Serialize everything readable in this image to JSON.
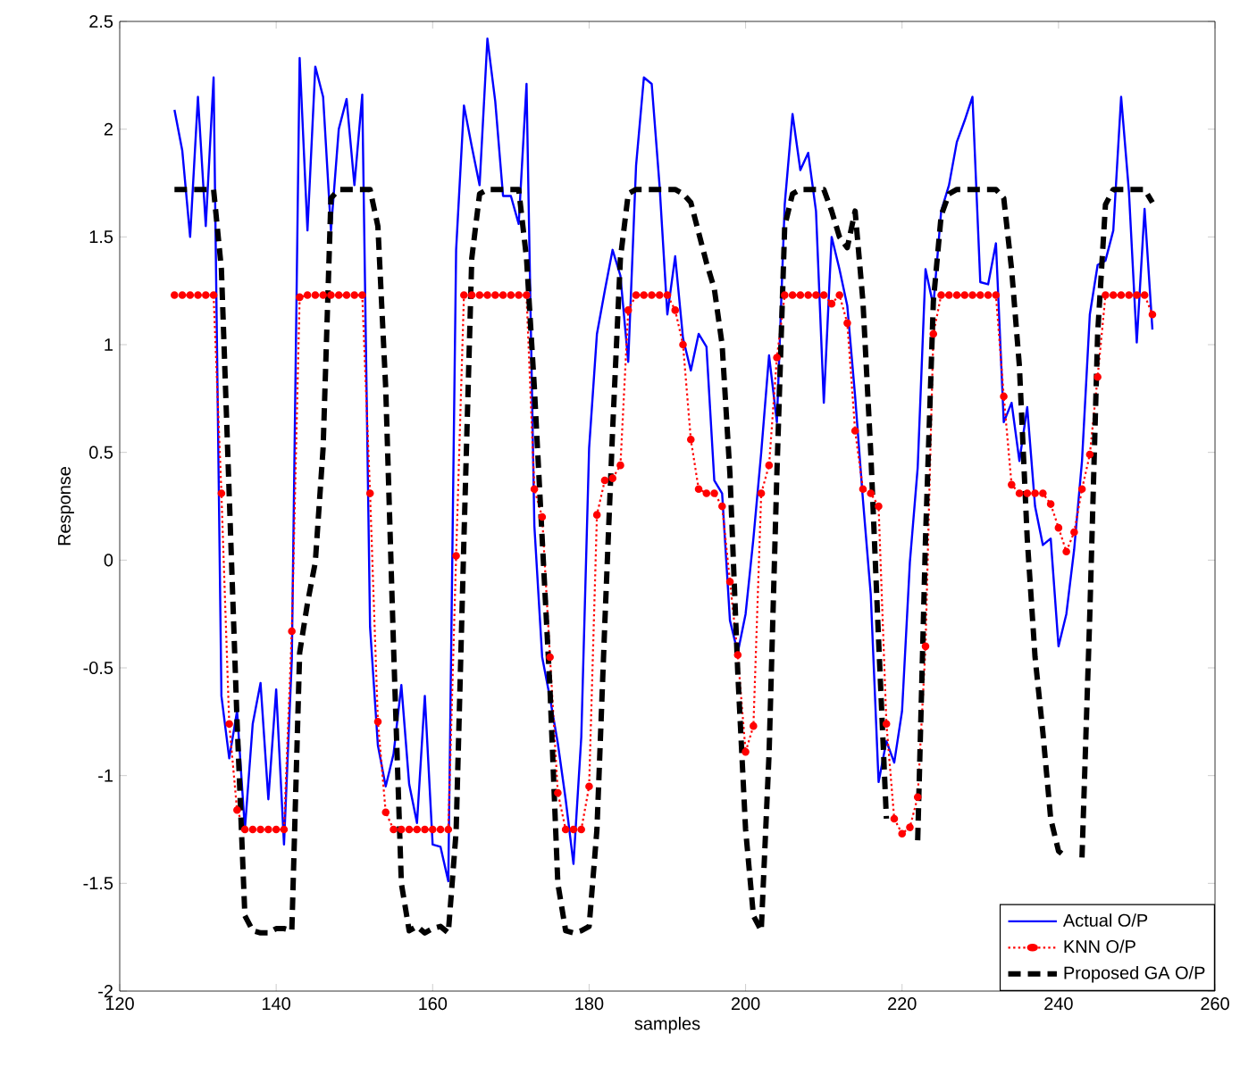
{
  "chart_data": {
    "type": "line",
    "xlabel": "samples",
    "ylabel": "Response",
    "xlim": [
      120,
      260
    ],
    "xticks": [
      120,
      140,
      160,
      180,
      200,
      220,
      240,
      260
    ],
    "ylim": [
      -2,
      2.5
    ],
    "yticks": [
      -2,
      -1.5,
      -1,
      -0.5,
      0,
      0.5,
      1,
      1.5,
      2,
      2.5
    ],
    "grid": false,
    "legend": "bottom right",
    "series": [
      {
        "name": "Actual O/P",
        "color": "#0000ff",
        "line_style": "solid",
        "marker": "none",
        "x": [
          127,
          128,
          129,
          130,
          131,
          132,
          133,
          134,
          135,
          136,
          137,
          138,
          139,
          140,
          141,
          142,
          143,
          144,
          145,
          146,
          147,
          148,
          149,
          150,
          151,
          152,
          153,
          154,
          155,
          156,
          157,
          158,
          159,
          160,
          161,
          162,
          163,
          164,
          165,
          166,
          167,
          168,
          169,
          170,
          171,
          172,
          173,
          174,
          175,
          176,
          177,
          178,
          179,
          180,
          181,
          182,
          183,
          184,
          185,
          186,
          187,
          188,
          189,
          190,
          191,
          192,
          193,
          194,
          195,
          196,
          197,
          198,
          199,
          200,
          201,
          202,
          203,
          204,
          205,
          206,
          207,
          208,
          209,
          210,
          211,
          212,
          213,
          214,
          215,
          216,
          217,
          218,
          219,
          220,
          221,
          222,
          223,
          224,
          225,
          226,
          227,
          228,
          229,
          230,
          231,
          232,
          233,
          234,
          235,
          236,
          237,
          238,
          239,
          240,
          241,
          242,
          243,
          244,
          245,
          246,
          247,
          248,
          249,
          250,
          251,
          252
        ],
        "values": [
          2.09,
          1.9,
          1.5,
          2.15,
          1.55,
          2.24,
          -0.63,
          -0.92,
          -0.7,
          -1.25,
          -0.76,
          -0.57,
          -1.11,
          -0.6,
          -1.32,
          -0.46,
          2.33,
          1.53,
          2.29,
          2.15,
          1.53,
          2.0,
          2.14,
          1.74,
          2.16,
          -0.31,
          -0.86,
          -1.05,
          -0.9,
          -0.58,
          -1.04,
          -1.22,
          -0.63,
          -1.32,
          -1.33,
          -1.49,
          1.44,
          2.11,
          1.92,
          1.74,
          2.42,
          2.13,
          1.69,
          1.69,
          1.56,
          2.21,
          0.16,
          -0.45,
          -0.64,
          -0.85,
          -1.11,
          -1.41,
          -0.82,
          0.52,
          1.05,
          1.25,
          1.44,
          1.32,
          0.92,
          1.83,
          2.24,
          2.21,
          1.74,
          1.14,
          1.41,
          1.03,
          0.88,
          1.05,
          0.99,
          0.37,
          0.31,
          -0.28,
          -0.43,
          -0.25,
          0.1,
          0.5,
          0.95,
          0.64,
          1.65,
          2.07,
          1.81,
          1.89,
          1.62,
          0.73,
          1.5,
          1.35,
          1.18,
          0.76,
          0.28,
          -0.16,
          -1.03,
          -0.84,
          -0.94,
          -0.7,
          -0.01,
          0.43,
          1.35,
          1.18,
          1.62,
          1.74,
          1.94,
          2.04,
          2.15,
          1.29,
          1.28,
          1.47,
          0.64,
          0.73,
          0.46,
          0.71,
          0.25,
          0.07,
          0.1,
          -0.4,
          -0.25,
          0.05,
          0.46,
          1.14,
          1.37,
          1.39,
          1.53,
          2.15,
          1.71,
          1.01,
          1.63,
          1.07
        ]
      },
      {
        "name": "KNN O/P",
        "color": "#ff0000",
        "line_style": "dotted",
        "marker": "circle",
        "x": [
          127,
          128,
          129,
          130,
          131,
          132,
          133,
          134,
          135,
          136,
          137,
          138,
          139,
          140,
          141,
          142,
          143,
          144,
          145,
          146,
          147,
          148,
          149,
          150,
          151,
          152,
          153,
          154,
          155,
          156,
          157,
          158,
          159,
          160,
          161,
          162,
          163,
          164,
          165,
          166,
          167,
          168,
          169,
          170,
          171,
          172,
          173,
          174,
          175,
          176,
          177,
          178,
          179,
          180,
          181,
          182,
          183,
          184,
          185,
          186,
          187,
          188,
          189,
          190,
          191,
          192,
          193,
          194,
          195,
          196,
          197,
          198,
          199,
          200,
          201,
          202,
          203,
          204,
          205,
          206,
          207,
          208,
          209,
          210,
          211,
          212,
          213,
          214,
          215,
          216,
          217,
          218,
          219,
          220,
          221,
          222,
          223,
          224,
          225,
          226,
          227,
          228,
          229,
          230,
          231,
          232,
          233,
          234,
          235,
          236,
          237,
          238,
          239,
          240,
          241,
          242,
          243,
          244,
          245,
          246,
          247,
          248,
          249,
          250,
          251,
          252
        ],
        "values": [
          1.23,
          1.23,
          1.23,
          1.23,
          1.23,
          1.23,
          0.31,
          -0.76,
          -1.16,
          -1.25,
          -1.25,
          -1.25,
          -1.25,
          -1.25,
          -1.25,
          -0.33,
          1.22,
          1.23,
          1.23,
          1.23,
          1.23,
          1.23,
          1.23,
          1.23,
          1.23,
          0.31,
          -0.75,
          -1.17,
          -1.25,
          -1.25,
          -1.25,
          -1.25,
          -1.25,
          -1.25,
          -1.25,
          -1.25,
          0.02,
          1.23,
          1.23,
          1.23,
          1.23,
          1.23,
          1.23,
          1.23,
          1.23,
          1.23,
          0.33,
          0.2,
          -0.45,
          -1.08,
          -1.25,
          -1.25,
          -1.25,
          -1.05,
          0.21,
          0.37,
          0.38,
          0.44,
          1.16,
          1.23,
          1.23,
          1.23,
          1.23,
          1.23,
          1.16,
          1.0,
          0.56,
          0.33,
          0.31,
          0.31,
          0.25,
          -0.1,
          -0.44,
          -0.89,
          -0.77,
          0.31,
          0.44,
          0.94,
          1.23,
          1.23,
          1.23,
          1.23,
          1.23,
          1.23,
          1.19,
          1.23,
          1.1,
          0.6,
          0.33,
          0.31,
          0.25,
          -0.76,
          -1.2,
          -1.27,
          -1.24,
          -1.1,
          -0.4,
          1.05,
          1.23,
          1.23,
          1.23,
          1.23,
          1.23,
          1.23,
          1.23,
          1.23,
          0.76,
          0.35,
          0.31,
          0.31,
          0.31,
          0.31,
          0.26,
          0.15,
          0.04,
          0.13,
          0.33,
          0.49,
          0.85,
          1.23,
          1.23,
          1.23,
          1.23,
          1.23,
          1.23,
          1.14
        ]
      },
      {
        "name": "Proposed GA O/P",
        "color": "#000000",
        "line_style": "dashed",
        "marker": "none",
        "x": [
          127,
          128,
          129,
          130,
          131,
          132,
          133,
          134,
          135,
          136,
          137,
          138,
          139,
          140,
          141,
          142,
          143,
          144,
          145,
          146,
          147,
          148,
          149,
          150,
          151,
          152,
          153,
          154,
          155,
          156,
          157,
          158,
          159,
          160,
          161,
          162,
          163,
          164,
          165,
          166,
          167,
          168,
          169,
          170,
          171,
          172,
          173,
          174,
          175,
          176,
          177,
          178,
          179,
          180,
          181,
          182,
          183,
          184,
          185,
          186,
          187,
          188,
          189,
          190,
          191,
          192,
          193,
          194,
          195,
          196,
          197,
          198,
          199,
          200,
          201,
          202,
          203,
          204,
          205,
          206,
          207,
          208,
          209,
          210,
          211,
          212,
          213,
          214,
          215,
          216,
          217,
          218,
          219,
          220,
          221,
          222,
          223,
          224,
          225,
          226,
          227,
          228,
          229,
          230,
          231,
          232,
          233,
          234,
          235,
          236,
          237,
          238,
          239,
          240,
          241,
          242,
          243,
          244,
          245,
          246,
          247,
          248,
          249,
          250,
          251,
          252
        ],
        "values": [
          1.72,
          1.72,
          1.72,
          1.72,
          1.72,
          1.72,
          1.35,
          0.3,
          -0.75,
          -1.65,
          -1.72,
          -1.73,
          -1.73,
          -1.71,
          -1.71,
          -1.72,
          -0.43,
          -0.2,
          -0.01,
          0.52,
          1.68,
          1.72,
          1.72,
          1.72,
          1.72,
          1.72,
          1.55,
          0.8,
          -0.4,
          -1.5,
          -1.72,
          -1.7,
          -1.73,
          -1.71,
          -1.7,
          -1.73,
          -1.26,
          0.1,
          1.4,
          1.7,
          1.72,
          1.72,
          1.72,
          1.72,
          1.72,
          1.4,
          0.8,
          0.1,
          -0.6,
          -1.5,
          -1.72,
          -1.73,
          -1.72,
          -1.7,
          -1.25,
          -0.3,
          0.6,
          1.4,
          1.7,
          1.72,
          1.72,
          1.72,
          1.72,
          1.72,
          1.72,
          1.7,
          1.66,
          1.52,
          1.38,
          1.26,
          1.0,
          0.4,
          -0.52,
          -1.25,
          -1.65,
          -1.72,
          -0.9,
          0.4,
          1.55,
          1.7,
          1.72,
          1.72,
          1.72,
          1.72,
          1.62,
          1.5,
          1.45,
          1.62,
          1.2,
          0.5,
          -0.37,
          -1.2,
          null,
          null,
          null,
          -1.3,
          0.1,
          1.2,
          1.6,
          1.7,
          1.72,
          1.72,
          1.72,
          1.72,
          1.72,
          1.72,
          1.68,
          1.35,
          0.9,
          0.1,
          -0.45,
          -0.8,
          -1.2,
          -1.35,
          -1.38,
          null,
          -1.38,
          -0.25,
          1.05,
          1.65,
          1.72,
          1.72,
          1.72,
          1.72,
          1.72,
          1.66
        ]
      }
    ]
  }
}
